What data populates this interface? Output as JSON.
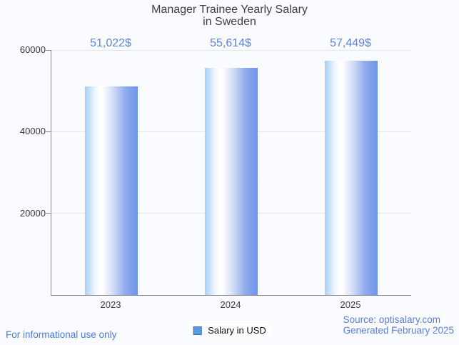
{
  "title": {
    "line1": "Manager Trainee Yearly Salary",
    "line2": "in Sweden"
  },
  "chart_data": {
    "type": "bar",
    "title": "Manager Trainee Yearly Salary in Sweden",
    "categories": [
      "2023",
      "2024",
      "2025"
    ],
    "values": [
      51022,
      55614,
      57449
    ],
    "value_labels": [
      "51,022$",
      "55,614$",
      "57,449$"
    ],
    "series_name": "Salary in USD",
    "xlabel": "",
    "ylabel": "",
    "ylim": [
      0,
      60000
    ],
    "yticks": [
      20000,
      40000,
      60000
    ],
    "ytick_labels": [
      "20000",
      "40000",
      "60000"
    ],
    "grid": true,
    "legend_position": "bottom-center"
  },
  "legend": {
    "label": "Salary in USD",
    "swatch_icon": "legend-swatch-icon",
    "swatch_color": "#569be1",
    "swatch_border_color": "#3c6fc0"
  },
  "footer": {
    "left_note": "For informational use only",
    "source_line1": "Source: optisalary.com",
    "source_line2": "Generated February 2025"
  },
  "colors": {
    "background": "#fafbfe",
    "title_text": "#3d3f42",
    "axis_line": "#85888e",
    "gridline": "#e4e6ea",
    "value_label_text": "#5b84e0",
    "footer_left_text": "#4b79e4",
    "footer_right_text": "#5d7ed7",
    "bar_gradient_left": "#a8cff6",
    "bar_gradient_highlight": "#ffffff",
    "bar_gradient_right": "#7094e8"
  }
}
